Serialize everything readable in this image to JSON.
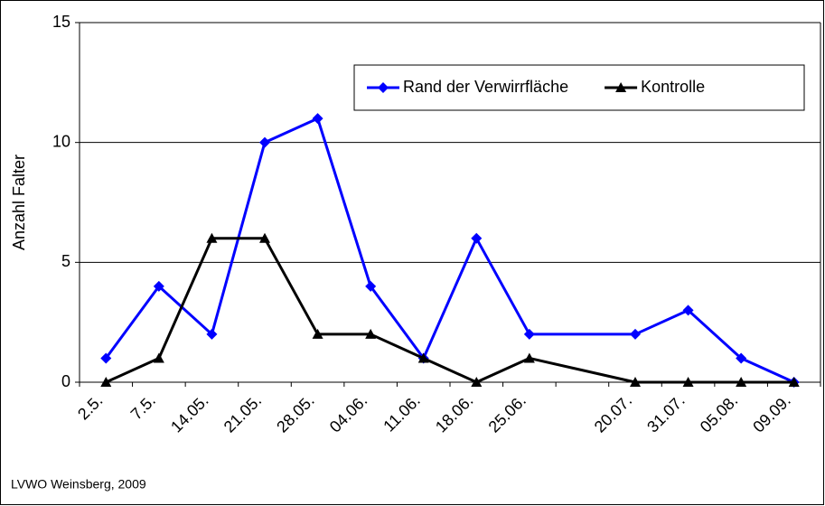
{
  "chart_data": {
    "type": "line",
    "y_label": "Anzahl Falter",
    "source": "LVWO Weinsberg, 2009",
    "categories": [
      "2.5.",
      "7.5.",
      "14.05.",
      "21.05.",
      "28.05.",
      "04.06.",
      "11.06.",
      "18.06.",
      "25.06.",
      null,
      "20.07.",
      "31.07.",
      "05.08.",
      "09.09."
    ],
    "series": [
      {
        "name": "Rand der Verwirrfläche",
        "color": "#0000ff",
        "marker": "diamond",
        "values": [
          1,
          4,
          2,
          10,
          11,
          4,
          1,
          6,
          2,
          null,
          2,
          3,
          1,
          0
        ]
      },
      {
        "name": "Kontrolle",
        "color": "#000000",
        "marker": "triangle",
        "values": [
          0,
          1,
          6,
          6,
          2,
          2,
          1,
          0,
          1,
          null,
          0,
          0,
          0,
          0
        ]
      }
    ],
    "span_gaps": true,
    "ylim": [
      0,
      15
    ],
    "yticks": [
      0,
      5,
      10,
      15
    ],
    "grid": true,
    "legend": "top-right"
  }
}
